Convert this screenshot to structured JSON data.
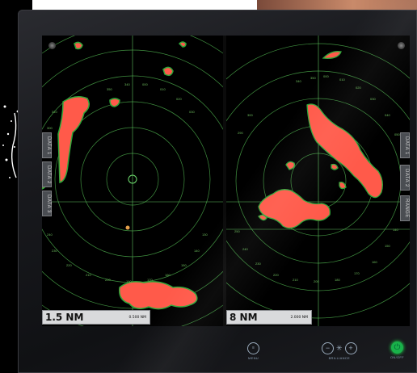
{
  "left_display": {
    "range_label": "1.5 NM",
    "ring_interval": "0.500 NM",
    "side_tabs": [
      "DATA 1",
      "DATA 2",
      "DATA 3"
    ],
    "bearing_labels": [
      "340",
      "350",
      "000",
      "010",
      "020",
      "030",
      "320",
      "310",
      "300",
      "290",
      "280",
      "270",
      "260",
      "250",
      "240",
      "230",
      "220",
      "210",
      "200",
      "190",
      "180",
      "170",
      "160",
      "150",
      "140",
      "130",
      "120",
      "110"
    ]
  },
  "right_display": {
    "range_label": "8 NM",
    "ring_interval": "2.000 NM",
    "side_tabs": [
      "DATA 1",
      "DATA 2",
      "RANGE"
    ],
    "bearing_labels": [
      "340",
      "350",
      "000",
      "010",
      "020",
      "030",
      "040",
      "050",
      "060",
      "310",
      "300",
      "290",
      "280",
      "270",
      "250",
      "240",
      "230",
      "220",
      "210",
      "200",
      "190",
      "180",
      "170",
      "160",
      "150",
      "140",
      "130",
      "120"
    ]
  },
  "bezel": {
    "menu_label": "MENU",
    "brilliance_label": "BRILLIANCE",
    "brilliance_minus": "−",
    "brilliance_plus": "+",
    "power_label": "ON/OFF"
  },
  "colors": {
    "echo": "#ff5a4a",
    "echo_edge": "#2fa83a",
    "ring": "#4fa04a",
    "bezel": "#18191d"
  }
}
